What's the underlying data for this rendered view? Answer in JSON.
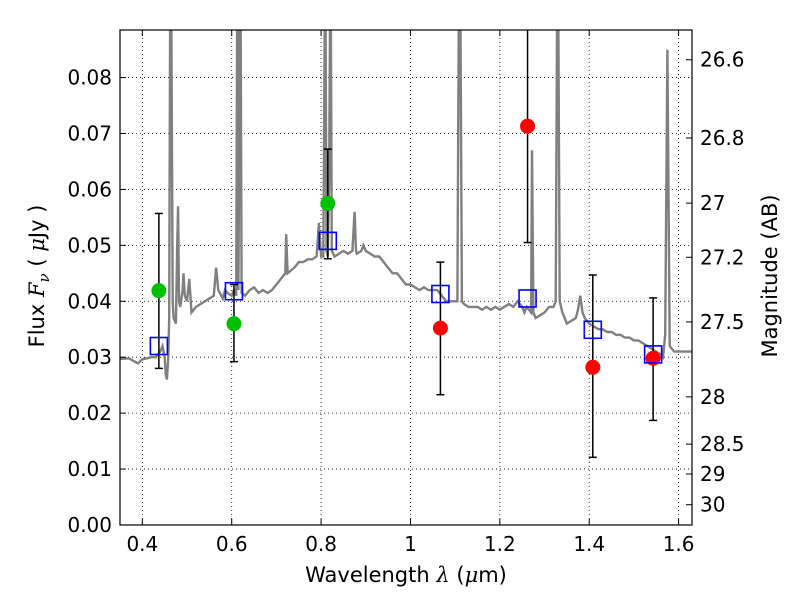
{
  "chart_data": {
    "type": "scatter",
    "xlabel_prefix": "Wavelength",
    "xlabel_symbol": "λ",
    "xlabel_unit_open": " (",
    "xlabel_unit_symbol": "μ",
    "xlabel_unit_close": "m)",
    "ylabel_prefix": "Flux",
    "ylabel_symbol": "F",
    "ylabel_subscript": "ν",
    "ylabel_unit_open": " ( ",
    "ylabel_unit_symbol": "μ",
    "ylabel_unit_close": "Jy )",
    "y2label": "Magnitude (AB)",
    "xlim": [
      0.35,
      1.63
    ],
    "ylim": [
      0.0,
      0.0885
    ],
    "grid": true,
    "x_ticks": [
      {
        "value": 0.4,
        "label": "0.4"
      },
      {
        "value": 0.6,
        "label": "0.6"
      },
      {
        "value": 0.8,
        "label": "0.8"
      },
      {
        "value": 1.0,
        "label": "1"
      },
      {
        "value": 1.2,
        "label": "1.2"
      },
      {
        "value": 1.4,
        "label": "1.4"
      },
      {
        "value": 1.6,
        "label": "1.6"
      }
    ],
    "y_ticks": [
      {
        "value": 0.0,
        "label": "0.00"
      },
      {
        "value": 0.01,
        "label": "0.01"
      },
      {
        "value": 0.02,
        "label": "0.02"
      },
      {
        "value": 0.03,
        "label": "0.03"
      },
      {
        "value": 0.04,
        "label": "0.04"
      },
      {
        "value": 0.05,
        "label": "0.05"
      },
      {
        "value": 0.06,
        "label": "0.06"
      },
      {
        "value": 0.07,
        "label": "0.07"
      },
      {
        "value": 0.08,
        "label": "0.08"
      }
    ],
    "y2_ticks": [
      {
        "mag": 26.6,
        "label": "26.6"
      },
      {
        "mag": 26.8,
        "label": "26.8"
      },
      {
        "mag": 27.0,
        "label": "27"
      },
      {
        "mag": 27.2,
        "label": "27.2"
      },
      {
        "mag": 27.5,
        "label": "27.5"
      },
      {
        "mag": 28.0,
        "label": "28"
      },
      {
        "mag": 28.5,
        "label": "28.5"
      },
      {
        "mag": 29.0,
        "label": "29"
      },
      {
        "mag": 30.0,
        "label": "30"
      }
    ],
    "series": [
      {
        "kind": "line",
        "color": "#808080",
        "points": [
          [
            0.35,
            0.0297
          ],
          [
            0.37,
            0.0298
          ],
          [
            0.39,
            0.0289
          ],
          [
            0.4,
            0.0296
          ],
          [
            0.41,
            0.0298
          ],
          [
            0.42,
            0.03
          ],
          [
            0.43,
            0.03
          ],
          [
            0.44,
            0.031
          ],
          [
            0.445,
            0.032
          ],
          [
            0.45,
            0.03
          ],
          [
            0.452,
            0.0272
          ],
          [
            0.455,
            0.026
          ],
          [
            0.458,
            0.03
          ],
          [
            0.46,
            0.037
          ],
          [
            0.462,
            0.0885
          ],
          [
            0.465,
            0.0885
          ],
          [
            0.468,
            0.04
          ],
          [
            0.47,
            0.037
          ],
          [
            0.475,
            0.036
          ],
          [
            0.478,
            0.05
          ],
          [
            0.48,
            0.057
          ],
          [
            0.482,
            0.04
          ],
          [
            0.485,
            0.039
          ],
          [
            0.49,
            0.042
          ],
          [
            0.492,
            0.045
          ],
          [
            0.495,
            0.041
          ],
          [
            0.5,
            0.04
          ],
          [
            0.505,
            0.044
          ],
          [
            0.51,
            0.038
          ],
          [
            0.52,
            0.039
          ],
          [
            0.53,
            0.0395
          ],
          [
            0.54,
            0.04
          ],
          [
            0.55,
            0.0405
          ],
          [
            0.56,
            0.041
          ],
          [
            0.565,
            0.046
          ],
          [
            0.57,
            0.042
          ],
          [
            0.58,
            0.0405
          ],
          [
            0.585,
            0.042
          ],
          [
            0.59,
            0.0415
          ],
          [
            0.6,
            0.041
          ],
          [
            0.605,
            0.042
          ],
          [
            0.61,
            0.041
          ],
          [
            0.612,
            0.0885
          ],
          [
            0.614,
            0.0885
          ],
          [
            0.615,
            0.042
          ],
          [
            0.618,
            0.0885
          ],
          [
            0.62,
            0.0885
          ],
          [
            0.622,
            0.0415
          ],
          [
            0.63,
            0.041
          ],
          [
            0.64,
            0.042
          ],
          [
            0.65,
            0.0425
          ],
          [
            0.66,
            0.0415
          ],
          [
            0.67,
            0.042
          ],
          [
            0.68,
            0.0415
          ],
          [
            0.69,
            0.042
          ],
          [
            0.7,
            0.043
          ],
          [
            0.71,
            0.044
          ],
          [
            0.72,
            0.045
          ],
          [
            0.722,
            0.052
          ],
          [
            0.725,
            0.045
          ],
          [
            0.74,
            0.046
          ],
          [
            0.75,
            0.047
          ],
          [
            0.76,
            0.047
          ],
          [
            0.77,
            0.0475
          ],
          [
            0.78,
            0.0475
          ],
          [
            0.79,
            0.048
          ],
          [
            0.795,
            0.054
          ],
          [
            0.8,
            0.048
          ],
          [
            0.805,
            0.048
          ],
          [
            0.808,
            0.0885
          ],
          [
            0.81,
            0.0885
          ],
          [
            0.812,
            0.049
          ],
          [
            0.815,
            0.048
          ],
          [
            0.818,
            0.062
          ],
          [
            0.82,
            0.0885
          ],
          [
            0.822,
            0.0885
          ],
          [
            0.824,
            0.049
          ],
          [
            0.83,
            0.048
          ],
          [
            0.84,
            0.0485
          ],
          [
            0.85,
            0.049
          ],
          [
            0.86,
            0.0485
          ],
          [
            0.87,
            0.049
          ],
          [
            0.875,
            0.056
          ],
          [
            0.878,
            0.049
          ],
          [
            0.88,
            0.0485
          ],
          [
            0.89,
            0.049
          ],
          [
            0.895,
            0.05
          ],
          [
            0.9,
            0.049
          ],
          [
            0.91,
            0.0485
          ],
          [
            0.92,
            0.048
          ],
          [
            0.93,
            0.048
          ],
          [
            0.94,
            0.047
          ],
          [
            0.95,
            0.046
          ],
          [
            0.96,
            0.045
          ],
          [
            0.97,
            0.045
          ],
          [
            0.98,
            0.044
          ],
          [
            0.99,
            0.043
          ],
          [
            1.0,
            0.043
          ],
          [
            1.01,
            0.0425
          ],
          [
            1.02,
            0.042
          ],
          [
            1.03,
            0.0425
          ],
          [
            1.04,
            0.042
          ],
          [
            1.05,
            0.042
          ],
          [
            1.06,
            0.042
          ],
          [
            1.07,
            0.041
          ],
          [
            1.08,
            0.04
          ],
          [
            1.09,
            0.04
          ],
          [
            1.1,
            0.04
          ],
          [
            1.105,
            0.04
          ],
          [
            1.108,
            0.0885
          ],
          [
            1.112,
            0.0885
          ],
          [
            1.115,
            0.04
          ],
          [
            1.12,
            0.0395
          ],
          [
            1.13,
            0.039
          ],
          [
            1.14,
            0.039
          ],
          [
            1.15,
            0.039
          ],
          [
            1.16,
            0.0385
          ],
          [
            1.17,
            0.039
          ],
          [
            1.18,
            0.0385
          ],
          [
            1.19,
            0.039
          ],
          [
            1.2,
            0.0385
          ],
          [
            1.21,
            0.039
          ],
          [
            1.22,
            0.0395
          ],
          [
            1.23,
            0.039
          ],
          [
            1.24,
            0.04
          ],
          [
            1.25,
            0.039
          ],
          [
            1.255,
            0.038
          ],
          [
            1.26,
            0.039
          ],
          [
            1.27,
            0.038
          ],
          [
            1.272,
            0.067
          ],
          [
            1.275,
            0.038
          ],
          [
            1.28,
            0.037
          ],
          [
            1.29,
            0.0375
          ],
          [
            1.3,
            0.038
          ],
          [
            1.31,
            0.039
          ],
          [
            1.32,
            0.039
          ],
          [
            1.325,
            0.04
          ],
          [
            1.328,
            0.0885
          ],
          [
            1.331,
            0.0885
          ],
          [
            1.334,
            0.04
          ],
          [
            1.34,
            0.038
          ],
          [
            1.35,
            0.036
          ],
          [
            1.36,
            0.0365
          ],
          [
            1.37,
            0.037
          ],
          [
            1.375,
            0.0385
          ],
          [
            1.38,
            0.041
          ],
          [
            1.385,
            0.038
          ],
          [
            1.39,
            0.037
          ],
          [
            1.4,
            0.036
          ],
          [
            1.41,
            0.0355
          ],
          [
            1.42,
            0.035
          ],
          [
            1.43,
            0.035
          ],
          [
            1.44,
            0.0345
          ],
          [
            1.45,
            0.0345
          ],
          [
            1.46,
            0.034
          ],
          [
            1.47,
            0.034
          ],
          [
            1.48,
            0.0335
          ],
          [
            1.49,
            0.0335
          ],
          [
            1.5,
            0.033
          ],
          [
            1.51,
            0.033
          ],
          [
            1.52,
            0.0325
          ],
          [
            1.53,
            0.032
          ],
          [
            1.54,
            0.0315
          ],
          [
            1.55,
            0.031
          ],
          [
            1.56,
            0.0305
          ],
          [
            1.565,
            0.03
          ],
          [
            1.57,
            0.034
          ],
          [
            1.575,
            0.085
          ],
          [
            1.58,
            0.032
          ],
          [
            1.59,
            0.031
          ],
          [
            1.6,
            0.031
          ],
          [
            1.61,
            0.031
          ],
          [
            1.62,
            0.031
          ],
          [
            1.63,
            0.031
          ]
        ]
      },
      {
        "kind": "errorbar",
        "color": "#000000",
        "points": [
          {
            "x": 0.437,
            "low": 0.028,
            "high": 0.0557
          },
          {
            "x": 0.605,
            "low": 0.0292,
            "high": 0.043
          },
          {
            "x": 0.815,
            "low": 0.0476,
            "high": 0.0672
          },
          {
            "x": 1.067,
            "low": 0.0233,
            "high": 0.047
          },
          {
            "x": 1.262,
            "low": 0.0505,
            "high": 0.0885
          },
          {
            "x": 1.408,
            "low": 0.0121,
            "high": 0.0447
          },
          {
            "x": 1.543,
            "low": 0.0187,
            "high": 0.0406
          }
        ]
      },
      {
        "kind": "marker-circle",
        "color": "#00c000",
        "points": [
          [
            0.437,
            0.0419
          ],
          [
            0.605,
            0.036
          ],
          [
            0.815,
            0.0575
          ]
        ]
      },
      {
        "kind": "marker-circle",
        "color": "#ff0000",
        "points": [
          [
            1.067,
            0.0352
          ],
          [
            1.262,
            0.0713
          ],
          [
            1.408,
            0.0282
          ],
          [
            1.543,
            0.0298
          ]
        ]
      },
      {
        "kind": "marker-square",
        "color": "#0000ff",
        "points": [
          [
            0.437,
            0.032
          ],
          [
            0.605,
            0.0418
          ],
          [
            0.815,
            0.0508
          ],
          [
            1.067,
            0.0413
          ],
          [
            1.262,
            0.0405
          ],
          [
            1.408,
            0.0349
          ],
          [
            1.543,
            0.0305
          ]
        ]
      }
    ]
  }
}
